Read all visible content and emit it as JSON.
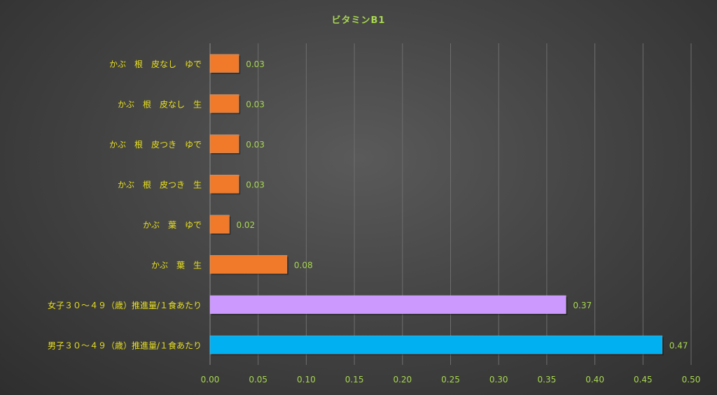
{
  "chart_data": {
    "type": "bar",
    "orientation": "horizontal",
    "title": "ビタミンB1",
    "categories": [
      "かぶ　根　皮なし　ゆで",
      "かぶ　根　皮なし　生",
      "かぶ　根　皮つき　ゆで",
      "かぶ　根　皮つき　生",
      "かぶ　葉　ゆで",
      "かぶ　葉　生",
      "女子３０～４９（歳）推進量/１食あたり",
      "男子３０～４９（歳）推進量/１食あたり"
    ],
    "values": [
      0.03,
      0.03,
      0.03,
      0.03,
      0.02,
      0.08,
      0.37,
      0.47
    ],
    "data_labels": [
      "0.03",
      "0.03",
      "0.03",
      "0.03",
      "0.02",
      "0.08",
      "0.37",
      "0.47"
    ],
    "bar_colors": [
      "#f07a2a",
      "#f07a2a",
      "#f07a2a",
      "#f07a2a",
      "#f07a2a",
      "#f07a2a",
      "#cc99ff",
      "#00b0f0"
    ],
    "xlim": [
      0,
      0.5
    ],
    "x_ticks": [
      "0.00",
      "0.05",
      "0.10",
      "0.15",
      "0.20",
      "0.25",
      "0.30",
      "0.35",
      "0.40",
      "0.45",
      "0.50"
    ],
    "grid": "vertical",
    "legend": "none",
    "xlabel": "",
    "ylabel": ""
  }
}
